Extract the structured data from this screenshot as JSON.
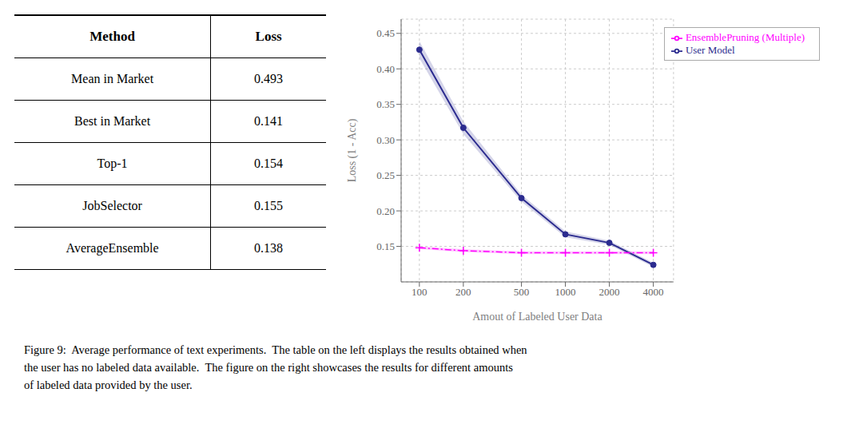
{
  "chart_data": [
    {
      "type": "table",
      "headers": [
        "Method",
        "Loss"
      ],
      "rows": [
        [
          "Mean in Market",
          "0.493"
        ],
        [
          "Best in Market",
          "0.141"
        ],
        [
          "Top-1",
          "0.154"
        ],
        [
          "JobSelector",
          "0.155"
        ],
        [
          "AverageEnsemble",
          "0.138"
        ]
      ]
    },
    {
      "type": "line",
      "x": [
        100,
        200,
        500,
        1000,
        2000,
        4000
      ],
      "xlabel": "Amout of Labeled User Data",
      "ylabel": "Loss (1 - Acc)",
      "log": "x",
      "xlim": [
        75,
        5500
      ],
      "xticks": [
        100,
        200,
        500,
        1000,
        2000,
        4000
      ],
      "ylim": [
        0.1,
        0.47
      ],
      "yticks": [
        0.15,
        {
          "value": 0.2,
          "label": "0.20"
        },
        0.25,
        {
          "value": 0.3,
          "label": "0.30"
        },
        0.35,
        {
          "value": 0.4,
          "label": "0.40"
        },
        0.45
      ],
      "grid": true,
      "legend": "upper right",
      "series": [
        {
          "name": "User Model",
          "color": "#2b2b8f",
          "marker": "circle",
          "line_style": "solid",
          "values": [
            0.427,
            0.317,
            0.218,
            0.167,
            0.155,
            0.124
          ],
          "lower": [
            0.415,
            0.308,
            0.213,
            0.163,
            0.152,
            0.121
          ],
          "upper": [
            0.439,
            0.326,
            0.223,
            0.171,
            0.158,
            0.127
          ]
        },
        {
          "name": "EnsemblePruning (Multiple)",
          "color": "#ff00ff",
          "marker": "plus",
          "line_style": "dashdot",
          "values": [
            0.148,
            0.144,
            0.141,
            0.141,
            0.141,
            0.141
          ],
          "lower": [
            0.146,
            0.142,
            0.139,
            0.139,
            0.139,
            0.139
          ],
          "upper": [
            0.15,
            0.146,
            0.143,
            0.143,
            0.143,
            0.143
          ]
        }
      ],
      "annotations": [
        "Figure 9:  Average performance of text experiments.  The table on the left displays the results obtained when",
        "the user has no labeled data available.  The figure on the right showcases the results for different amounts",
        "of labeled data provided by the user."
      ]
    }
  ]
}
